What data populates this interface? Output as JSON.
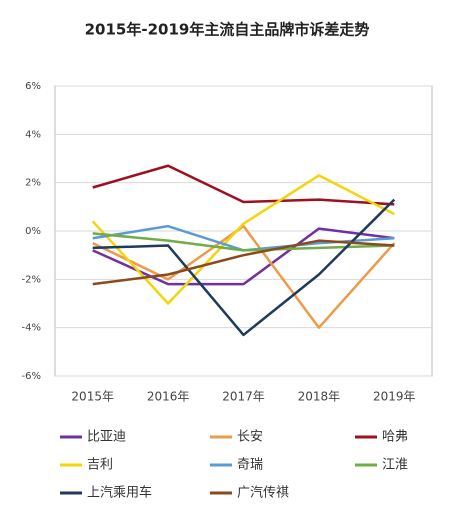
{
  "chart_data": {
    "type": "line",
    "title": "2015年-2019年主流自主品牌市诉差走势",
    "categories": [
      "2015年",
      "2016年",
      "2017年",
      "2018年",
      "2019年"
    ],
    "ylim": [
      -6,
      6
    ],
    "yticks": [
      {
        "value": -6,
        "label": "-6%"
      },
      {
        "value": -4,
        "label": "-4%"
      },
      {
        "value": -2,
        "label": "-2%"
      },
      {
        "value": 0,
        "label": "0%"
      },
      {
        "value": 2,
        "label": "2%"
      },
      {
        "value": 4,
        "label": "4%"
      },
      {
        "value": 6,
        "label": "6%"
      }
    ],
    "grid": true,
    "series": [
      {
        "name": "比亚迪",
        "color": "#7030a0",
        "values": [
          -0.8,
          -2.2,
          -2.2,
          0.1,
          -0.3
        ]
      },
      {
        "name": "长安",
        "color": "#ed9a4a",
        "values": [
          -0.5,
          -2.0,
          0.2,
          -4.0,
          -0.5
        ]
      },
      {
        "name": "哈弗",
        "color": "#9e1020",
        "values": [
          1.8,
          2.7,
          1.2,
          1.3,
          1.1
        ]
      },
      {
        "name": "吉利",
        "color": "#f5d40a",
        "values": [
          0.4,
          -3.0,
          0.3,
          2.3,
          0.7
        ]
      },
      {
        "name": "奇瑞",
        "color": "#5b9bd5",
        "values": [
          -0.3,
          0.2,
          -0.8,
          -0.5,
          -0.3
        ]
      },
      {
        "name": "江淮",
        "color": "#70ad47",
        "values": [
          -0.1,
          -0.4,
          -0.8,
          -0.7,
          -0.6
        ]
      },
      {
        "name": "上汽乘用车",
        "color": "#1f3a5a",
        "values": [
          -0.7,
          -0.6,
          -4.3,
          -1.8,
          1.3
        ]
      },
      {
        "name": "广汽传祺",
        "color": "#8b4a1c",
        "values": [
          -2.2,
          -1.8,
          -1.0,
          -0.4,
          -0.6
        ]
      }
    ]
  }
}
